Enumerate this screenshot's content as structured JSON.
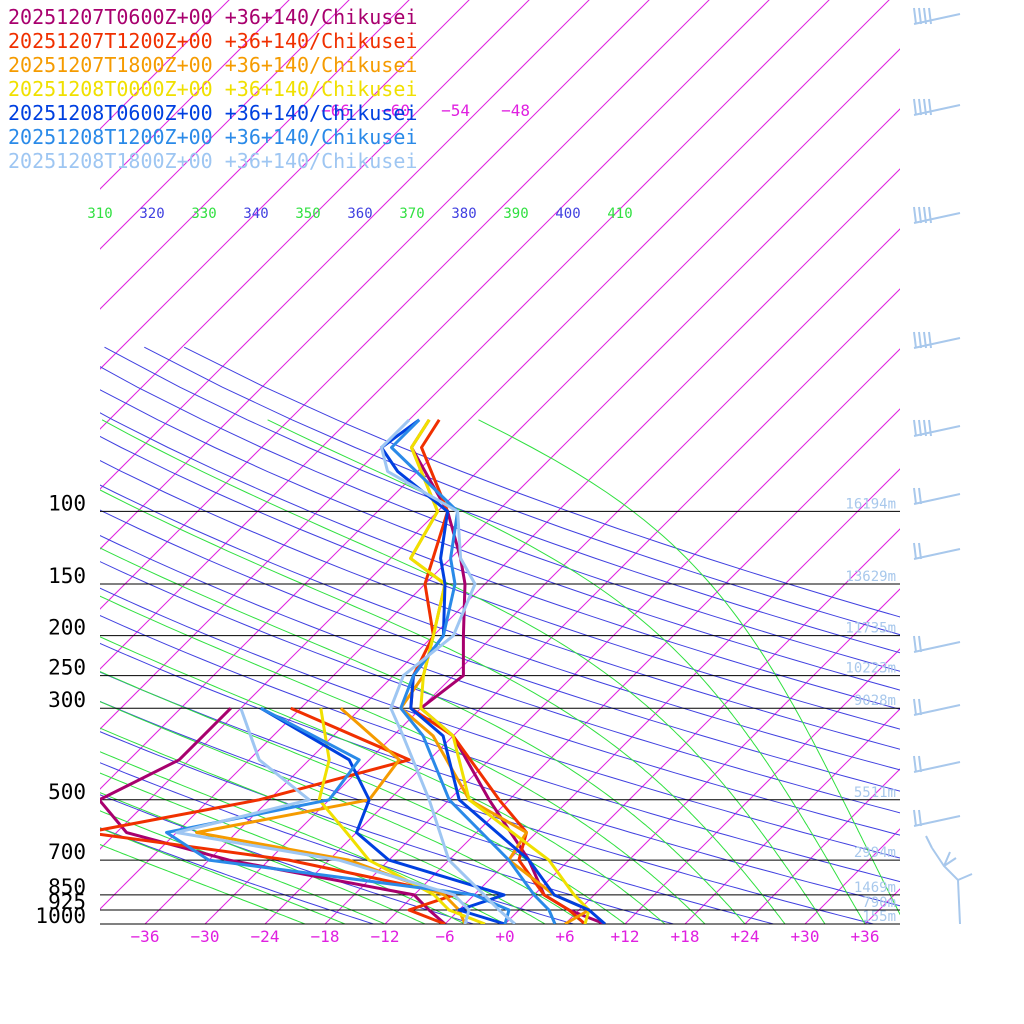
{
  "chart_data": {
    "type": "line",
    "location": "+36+140/Chikusei",
    "legend_placement": "top-left",
    "pressure_levels": [
      {
        "p": 100,
        "label": "100",
        "height": "16194m"
      },
      {
        "p": 150,
        "label": "150",
        "height": "13629m"
      },
      {
        "p": 200,
        "label": "200",
        "height": "11735m"
      },
      {
        "p": 250,
        "label": "250",
        "height": "10223m"
      },
      {
        "p": 300,
        "label": "300",
        "height": "9028m"
      },
      {
        "p": 500,
        "label": "500",
        "height": "5511m"
      },
      {
        "p": 700,
        "label": "700",
        "height": "2994m"
      },
      {
        "p": 850,
        "label": "850",
        "height": "1469m"
      },
      {
        "p": 925,
        "label": "925",
        "height": "790m"
      },
      {
        "p": 1000,
        "label": "1000",
        "height": "155m"
      }
    ],
    "temperature_ticks": [
      {
        "value": -36,
        "label": "−36"
      },
      {
        "value": -30,
        "label": "−30"
      },
      {
        "value": -24,
        "label": "−24"
      },
      {
        "value": -18,
        "label": "−18"
      },
      {
        "value": -12,
        "label": "−12"
      },
      {
        "value": -6,
        "label": "−6"
      },
      {
        "value": 0,
        "label": "+0"
      },
      {
        "value": 6,
        "label": "+6"
      },
      {
        "value": 12,
        "label": "+12"
      },
      {
        "value": 18,
        "label": "+18"
      },
      {
        "value": 24,
        "label": "+24"
      },
      {
        "value": 30,
        "label": "+30"
      },
      {
        "value": 36,
        "label": "+36"
      }
    ],
    "upper_temperature_labels": [
      {
        "value": -66,
        "label": "−66"
      },
      {
        "value": -60,
        "label": "−60"
      },
      {
        "value": -54,
        "label": "−54"
      },
      {
        "value": -48,
        "label": "−48"
      }
    ],
    "theta_labels": [
      {
        "value": 310,
        "label": "310"
      },
      {
        "value": 320,
        "label": "320"
      },
      {
        "value": 330,
        "label": "330"
      },
      {
        "value": 340,
        "label": "340"
      },
      {
        "value": 350,
        "label": "350"
      },
      {
        "value": 360,
        "label": "360"
      },
      {
        "value": 370,
        "label": "370"
      },
      {
        "value": 380,
        "label": "380"
      },
      {
        "value": 390,
        "label": "390"
      },
      {
        "value": 400,
        "label": "400"
      },
      {
        "value": 410,
        "label": "410"
      }
    ],
    "series": [
      {
        "name": "20251207T0600Z+00 +36+140/Chikusei",
        "color": "#a8006e",
        "temperature": [
          [
            60,
            -58
          ],
          [
            70,
            -57
          ],
          [
            100,
            -47
          ],
          [
            130,
            -41
          ],
          [
            150,
            -38
          ],
          [
            200,
            -33
          ],
          [
            250,
            -29
          ],
          [
            300,
            -30
          ],
          [
            350,
            -24
          ],
          [
            500,
            -14
          ],
          [
            700,
            -4
          ],
          [
            850,
            1
          ],
          [
            925,
            5
          ],
          [
            1000,
            10
          ]
        ],
        "dewpoint": [
          [
            300,
            -49
          ],
          [
            350,
            -49
          ],
          [
            400,
            -49
          ],
          [
            500,
            -53
          ],
          [
            600,
            -47
          ],
          [
            700,
            -34
          ],
          [
            850,
            -12
          ],
          [
            925,
            -9
          ],
          [
            1000,
            -6
          ]
        ]
      },
      {
        "name": "20251207T1200Z+00 +36+140/Chikusei",
        "color": "#f03000",
        "temperature": [
          [
            60,
            -57
          ],
          [
            70,
            -56
          ],
          [
            100,
            -47
          ],
          [
            150,
            -42
          ],
          [
            200,
            -36
          ],
          [
            250,
            -34
          ],
          [
            300,
            -31
          ],
          [
            350,
            -24
          ],
          [
            500,
            -13
          ],
          [
            600,
            -7
          ],
          [
            700,
            -5
          ],
          [
            850,
            1
          ],
          [
            925,
            5
          ],
          [
            1000,
            8
          ]
        ],
        "dewpoint": [
          [
            300,
            -43
          ],
          [
            400,
            -26
          ],
          [
            500,
            -37
          ],
          [
            600,
            -51
          ],
          [
            700,
            -28
          ],
          [
            850,
            -8
          ],
          [
            925,
            -11
          ],
          [
            1000,
            -6
          ]
        ]
      },
      {
        "name": "20251207T1800Z+00 +36+140/Chikusei",
        "color": "#f59b00",
        "temperature": [
          [
            60,
            -58
          ],
          [
            70,
            -57
          ],
          [
            100,
            -48
          ],
          [
            130,
            -46
          ],
          [
            150,
            -40
          ],
          [
            200,
            -36
          ],
          [
            250,
            -33
          ],
          [
            300,
            -32
          ],
          [
            350,
            -26
          ],
          [
            500,
            -16
          ],
          [
            600,
            -7
          ],
          [
            700,
            -6
          ],
          [
            850,
            2
          ],
          [
            925,
            7
          ],
          [
            1000,
            6
          ]
        ],
        "dewpoint": [
          [
            300,
            -38
          ],
          [
            400,
            -27
          ],
          [
            500,
            -26
          ],
          [
            600,
            -40
          ],
          [
            700,
            -22
          ],
          [
            850,
            -9
          ],
          [
            925,
            -6
          ],
          [
            1000,
            -4
          ]
        ]
      },
      {
        "name": "20251208T0000Z+00 +36+140/Chikusei",
        "color": "#f0e000",
        "temperature": [
          [
            60,
            -58
          ],
          [
            70,
            -57
          ],
          [
            100,
            -48
          ],
          [
            130,
            -46
          ],
          [
            150,
            -40
          ],
          [
            200,
            -36
          ],
          [
            250,
            -33
          ],
          [
            300,
            -30
          ],
          [
            350,
            -24
          ],
          [
            500,
            -16
          ],
          [
            700,
            -2
          ],
          [
            850,
            4
          ],
          [
            925,
            7
          ],
          [
            1000,
            8
          ]
        ],
        "dewpoint": [
          [
            300,
            -40
          ],
          [
            400,
            -34
          ],
          [
            500,
            -31
          ],
          [
            600,
            -25
          ],
          [
            700,
            -20
          ],
          [
            850,
            -10
          ],
          [
            925,
            -7
          ],
          [
            1000,
            -2
          ]
        ]
      },
      {
        "name": "20251208T0600Z+00 +36+140/Chikusei",
        "color": "#0040e0",
        "temperature": [
          [
            60,
            -59
          ],
          [
            70,
            -60
          ],
          [
            80,
            -56
          ],
          [
            100,
            -47
          ],
          [
            130,
            -43
          ],
          [
            150,
            -40
          ],
          [
            200,
            -35
          ],
          [
            250,
            -34
          ],
          [
            300,
            -31
          ],
          [
            350,
            -25
          ],
          [
            500,
            -17
          ],
          [
            700,
            -4
          ],
          [
            850,
            2
          ],
          [
            925,
            7
          ],
          [
            1000,
            10
          ]
        ],
        "dewpoint": [
          [
            300,
            -46
          ],
          [
            400,
            -32
          ],
          [
            500,
            -26
          ],
          [
            600,
            -24
          ],
          [
            700,
            -18
          ],
          [
            850,
            -3
          ],
          [
            925,
            -6
          ],
          [
            1000,
            0
          ]
        ]
      },
      {
        "name": "20251208T1200Z+00 +36+140/Chikusei",
        "color": "#2a8ae8",
        "temperature": [
          [
            60,
            -59
          ],
          [
            70,
            -59
          ],
          [
            100,
            -46
          ],
          [
            130,
            -42
          ],
          [
            150,
            -39
          ],
          [
            200,
            -35
          ],
          [
            250,
            -34
          ],
          [
            300,
            -32
          ],
          [
            350,
            -27
          ],
          [
            500,
            -18
          ],
          [
            700,
            -6
          ],
          [
            850,
            0
          ],
          [
            925,
            3
          ],
          [
            1000,
            5
          ]
        ],
        "dewpoint": [
          [
            300,
            -46
          ],
          [
            400,
            -31
          ],
          [
            500,
            -30
          ],
          [
            600,
            -43
          ],
          [
            700,
            -36
          ],
          [
            850,
            -6
          ],
          [
            925,
            -1
          ],
          [
            1000,
            0
          ]
        ]
      },
      {
        "name": "20251208T1800Z+00 +36+140/Chikusei",
        "color": "#9ec6f2",
        "temperature": [
          [
            60,
            -60
          ],
          [
            70,
            -60
          ],
          [
            80,
            -57
          ],
          [
            100,
            -46
          ],
          [
            130,
            -41
          ],
          [
            150,
            -37
          ],
          [
            200,
            -34
          ],
          [
            250,
            -35
          ],
          [
            300,
            -33
          ],
          [
            350,
            -29
          ],
          [
            500,
            -20
          ],
          [
            700,
            -12
          ],
          [
            850,
            -5
          ],
          [
            925,
            -2
          ],
          [
            1000,
            1
          ]
        ],
        "dewpoint": [
          [
            300,
            -48
          ],
          [
            400,
            -41
          ],
          [
            500,
            -32
          ],
          [
            600,
            -42
          ],
          [
            700,
            -23
          ],
          [
            850,
            -8
          ],
          [
            925,
            -5
          ],
          [
            1000,
            -4
          ]
        ]
      }
    ],
    "colors": {
      "isobar": "#000000",
      "isotherm": "#e020e0",
      "dry_adiabat": "#4040e0",
      "moist_adiabat": "#30e040",
      "wind_barb": "#a8c8ec"
    }
  }
}
